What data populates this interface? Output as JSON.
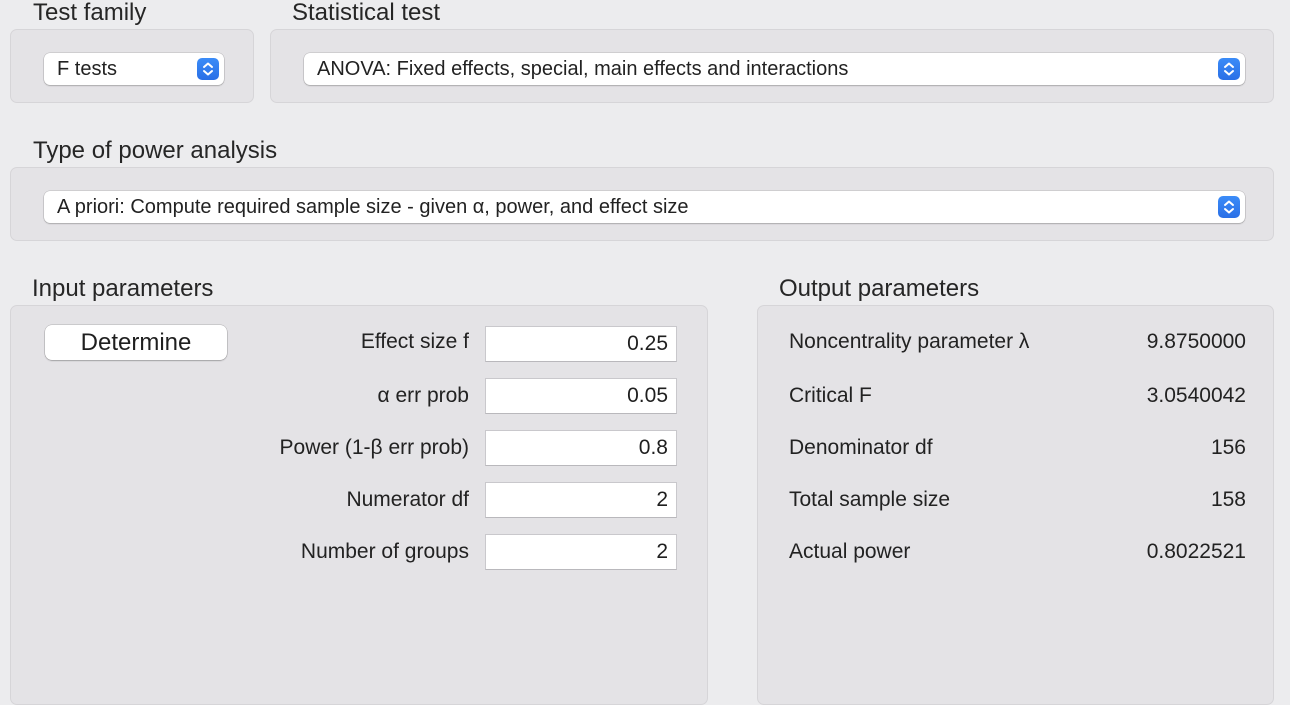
{
  "test_family": {
    "label": "Test family",
    "selected": "F tests"
  },
  "statistical_test": {
    "label": "Statistical test",
    "selected": "ANOVA: Fixed effects, special, main effects and interactions"
  },
  "power_analysis": {
    "label": "Type of power analysis",
    "selected": "A priori: Compute required sample size - given α, power, and effect size"
  },
  "input": {
    "label": "Input parameters",
    "determine_label": "Determine",
    "params": [
      {
        "label": "Effect size f",
        "value": "0.25"
      },
      {
        "label": "α err prob",
        "value": "0.05"
      },
      {
        "label": "Power (1-β err prob)",
        "value": "0.8"
      },
      {
        "label": "Numerator df",
        "value": "2"
      },
      {
        "label": "Number of groups",
        "value": "2"
      }
    ]
  },
  "output": {
    "label": "Output parameters",
    "params": [
      {
        "label": "Noncentrality parameter λ",
        "value": "9.8750000"
      },
      {
        "label": "Critical F",
        "value": "3.0540042"
      },
      {
        "label": "Denominator df",
        "value": "156"
      },
      {
        "label": "Total sample size",
        "value": "158"
      },
      {
        "label": "Actual power",
        "value": "0.8022521"
      }
    ]
  },
  "colors": {
    "window_bg": "#ececee",
    "panel_bg": "#e4e3e6",
    "stepper_accent": "#2f7bf0"
  },
  "icons": {
    "select_stepper": "chevron-up-down-icon"
  }
}
